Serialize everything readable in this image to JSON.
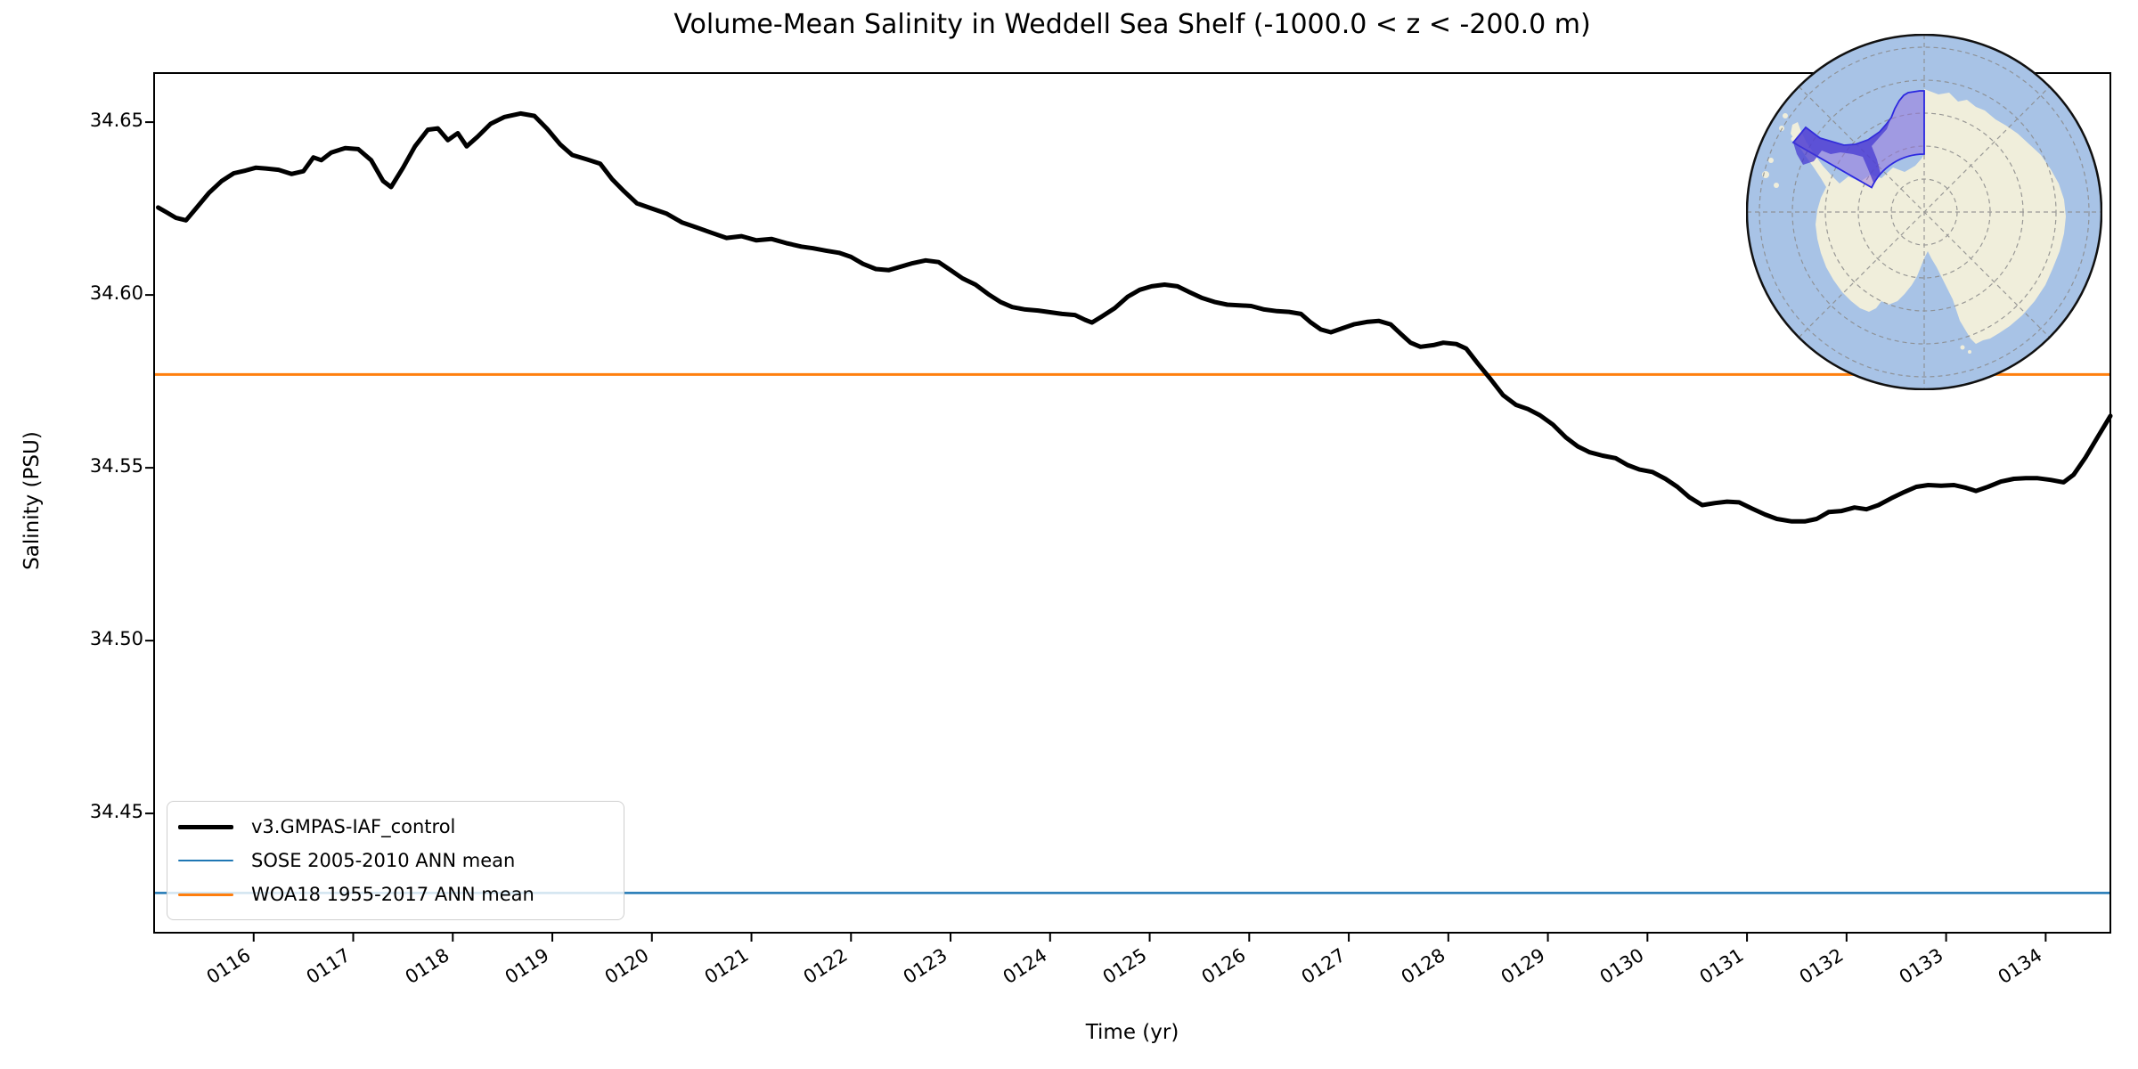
{
  "figure": {
    "title": "Volume-Mean Salinity in Weddell Sea Shelf (-1000.0 < z < -200.0 m)",
    "xlabel": "Time (yr)",
    "ylabel": "Salinity (PSU)"
  },
  "inset_map": {
    "name": "antarctica-polar-stereographic-inset",
    "highlight_region": "Weddell Sea Shelf",
    "colors": {
      "ocean": "#a8c3e6",
      "land": "#f0eedb",
      "region_fill": "#9871de",
      "region_deep_fill": "#4134d1",
      "region_outline": "#2b28e0",
      "graticule": "#8a8a8a"
    }
  },
  "chart_data": {
    "type": "line",
    "title": "Volume-Mean Salinity in Weddell Sea Shelf (-1000.0 < z < -200.0 m)",
    "xlabel": "Time (yr)",
    "ylabel": "Salinity (PSU)",
    "grid": false,
    "legend_position": "lower left",
    "xlim": [
      115.0,
      134.65
    ],
    "ylim": [
      34.4155,
      34.6642
    ],
    "xticks": [
      {
        "label": "0116",
        "value": 116
      },
      {
        "label": "0117",
        "value": 117
      },
      {
        "label": "0118",
        "value": 118
      },
      {
        "label": "0119",
        "value": 119
      },
      {
        "label": "0120",
        "value": 120
      },
      {
        "label": "0121",
        "value": 121
      },
      {
        "label": "0122",
        "value": 122
      },
      {
        "label": "0123",
        "value": 123
      },
      {
        "label": "0124",
        "value": 124
      },
      {
        "label": "0125",
        "value": 125
      },
      {
        "label": "0126",
        "value": 126
      },
      {
        "label": "0127",
        "value": 127
      },
      {
        "label": "0128",
        "value": 128
      },
      {
        "label": "0129",
        "value": 129
      },
      {
        "label": "0130",
        "value": 130
      },
      {
        "label": "0131",
        "value": 131
      },
      {
        "label": "0132",
        "value": 132
      },
      {
        "label": "0133",
        "value": 133
      },
      {
        "label": "0134",
        "value": 134
      }
    ],
    "yticks": [
      {
        "label": "34.65",
        "value": 34.65
      },
      {
        "label": "34.60",
        "value": 34.6
      },
      {
        "label": "34.55",
        "value": 34.55
      },
      {
        "label": "34.50",
        "value": 34.5
      },
      {
        "label": "34.45",
        "value": 34.45
      }
    ],
    "series": [
      {
        "name": "v3.GMPAS-IAF_control",
        "type": "line",
        "color": "#000000",
        "linewidth": 5,
        "points": [
          [
            115.04,
            34.6253
          ],
          [
            115.12,
            34.624
          ],
          [
            115.22,
            34.6223
          ],
          [
            115.32,
            34.6216
          ],
          [
            115.42,
            34.625
          ],
          [
            115.55,
            34.6295
          ],
          [
            115.68,
            34.633
          ],
          [
            115.8,
            34.6352
          ],
          [
            115.92,
            34.636
          ],
          [
            116.02,
            34.6368
          ],
          [
            116.12,
            34.6366
          ],
          [
            116.25,
            34.6362
          ],
          [
            116.38,
            34.635
          ],
          [
            116.5,
            34.6358
          ],
          [
            116.6,
            34.6398
          ],
          [
            116.68,
            34.639
          ],
          [
            116.78,
            34.6412
          ],
          [
            116.92,
            34.6425
          ],
          [
            117.05,
            34.6422
          ],
          [
            117.18,
            34.639
          ],
          [
            117.3,
            34.633
          ],
          [
            117.38,
            34.6312
          ],
          [
            117.5,
            34.6368
          ],
          [
            117.62,
            34.643
          ],
          [
            117.75,
            34.6478
          ],
          [
            117.85,
            34.6482
          ],
          [
            117.95,
            34.6448
          ],
          [
            118.05,
            34.6468
          ],
          [
            118.14,
            34.643
          ],
          [
            118.25,
            34.6458
          ],
          [
            118.38,
            34.6495
          ],
          [
            118.52,
            34.6515
          ],
          [
            118.68,
            34.6525
          ],
          [
            118.82,
            34.6518
          ],
          [
            118.95,
            34.648
          ],
          [
            119.08,
            34.6435
          ],
          [
            119.2,
            34.6405
          ],
          [
            119.35,
            34.6392
          ],
          [
            119.48,
            34.638
          ],
          [
            119.6,
            34.6335
          ],
          [
            119.72,
            34.63
          ],
          [
            119.85,
            34.6265
          ],
          [
            120.0,
            34.625
          ],
          [
            120.15,
            34.6235
          ],
          [
            120.3,
            34.621
          ],
          [
            120.45,
            34.6195
          ],
          [
            120.6,
            34.618
          ],
          [
            120.75,
            34.6165
          ],
          [
            120.9,
            34.617
          ],
          [
            121.05,
            34.6158
          ],
          [
            121.2,
            34.6162
          ],
          [
            121.35,
            34.615
          ],
          [
            121.5,
            34.614
          ],
          [
            121.62,
            34.6135
          ],
          [
            121.75,
            34.6128
          ],
          [
            121.88,
            34.6122
          ],
          [
            122.0,
            34.611
          ],
          [
            122.12,
            34.609
          ],
          [
            122.25,
            34.6075
          ],
          [
            122.38,
            34.6072
          ],
          [
            122.5,
            34.6082
          ],
          [
            122.62,
            34.6092
          ],
          [
            122.75,
            34.61
          ],
          [
            122.88,
            34.6095
          ],
          [
            123.0,
            34.6072
          ],
          [
            123.12,
            34.6048
          ],
          [
            123.25,
            34.603
          ],
          [
            123.38,
            34.6002
          ],
          [
            123.5,
            34.598
          ],
          [
            123.62,
            34.5965
          ],
          [
            123.75,
            34.5958
          ],
          [
            123.88,
            34.5955
          ],
          [
            124.0,
            34.595
          ],
          [
            124.12,
            34.5945
          ],
          [
            124.25,
            34.5942
          ],
          [
            124.35,
            34.5928
          ],
          [
            124.42,
            34.592
          ],
          [
            124.52,
            34.5938
          ],
          [
            124.65,
            34.5962
          ],
          [
            124.78,
            34.5995
          ],
          [
            124.9,
            34.6015
          ],
          [
            125.02,
            34.6025
          ],
          [
            125.15,
            34.603
          ],
          [
            125.28,
            34.6025
          ],
          [
            125.4,
            34.6008
          ],
          [
            125.52,
            34.5992
          ],
          [
            125.65,
            34.598
          ],
          [
            125.78,
            34.5972
          ],
          [
            125.9,
            34.597
          ],
          [
            126.02,
            34.5968
          ],
          [
            126.15,
            34.5958
          ],
          [
            126.28,
            34.5953
          ],
          [
            126.4,
            34.5951
          ],
          [
            126.52,
            34.5945
          ],
          [
            126.62,
            34.592
          ],
          [
            126.72,
            34.59
          ],
          [
            126.82,
            34.5892
          ],
          [
            126.92,
            34.5902
          ],
          [
            127.05,
            34.5915
          ],
          [
            127.18,
            34.5922
          ],
          [
            127.3,
            34.5925
          ],
          [
            127.42,
            34.5915
          ],
          [
            127.52,
            34.5888
          ],
          [
            127.62,
            34.5862
          ],
          [
            127.72,
            34.585
          ],
          [
            127.85,
            34.5855
          ],
          [
            127.95,
            34.5862
          ],
          [
            128.08,
            34.5858
          ],
          [
            128.18,
            34.5845
          ],
          [
            128.3,
            34.58
          ],
          [
            128.42,
            34.5758
          ],
          [
            128.55,
            34.571
          ],
          [
            128.68,
            34.5682
          ],
          [
            128.8,
            34.567
          ],
          [
            128.92,
            34.5652
          ],
          [
            129.05,
            34.5625
          ],
          [
            129.18,
            34.5588
          ],
          [
            129.3,
            34.5562
          ],
          [
            129.42,
            34.5545
          ],
          [
            129.55,
            34.5535
          ],
          [
            129.68,
            34.5528
          ],
          [
            129.8,
            34.5508
          ],
          [
            129.92,
            34.5495
          ],
          [
            130.05,
            34.5488
          ],
          [
            130.18,
            34.5468
          ],
          [
            130.3,
            34.5445
          ],
          [
            130.42,
            34.5415
          ],
          [
            130.55,
            34.5392
          ],
          [
            130.68,
            34.5398
          ],
          [
            130.8,
            34.5402
          ],
          [
            130.92,
            34.54
          ],
          [
            131.05,
            34.5382
          ],
          [
            131.18,
            34.5365
          ],
          [
            131.3,
            34.5352
          ],
          [
            131.45,
            34.5345
          ],
          [
            131.58,
            34.5345
          ],
          [
            131.7,
            34.5352
          ],
          [
            131.82,
            34.5372
          ],
          [
            131.95,
            34.5375
          ],
          [
            132.08,
            34.5385
          ],
          [
            132.2,
            34.538
          ],
          [
            132.32,
            34.5392
          ],
          [
            132.45,
            34.5412
          ],
          [
            132.58,
            34.543
          ],
          [
            132.7,
            34.5445
          ],
          [
            132.82,
            34.545
          ],
          [
            132.95,
            34.5448
          ],
          [
            133.08,
            34.545
          ],
          [
            133.2,
            34.5442
          ],
          [
            133.3,
            34.5433
          ],
          [
            133.42,
            34.5445
          ],
          [
            133.55,
            34.546
          ],
          [
            133.68,
            34.5468
          ],
          [
            133.8,
            34.547
          ],
          [
            133.92,
            34.547
          ],
          [
            134.05,
            34.5465
          ],
          [
            134.18,
            34.5458
          ],
          [
            134.28,
            34.548
          ],
          [
            134.4,
            34.553
          ],
          [
            134.52,
            34.5588
          ],
          [
            134.65,
            34.565
          ]
        ]
      },
      {
        "name": "SOSE 2005-2010 ANN mean",
        "type": "hline",
        "color": "#1f77b4",
        "linewidth": 2.5,
        "value": 34.427
      },
      {
        "name": "WOA18 1955-2017 ANN mean",
        "type": "hline",
        "color": "#ff7f0e",
        "linewidth": 3,
        "value": 34.577
      }
    ]
  }
}
